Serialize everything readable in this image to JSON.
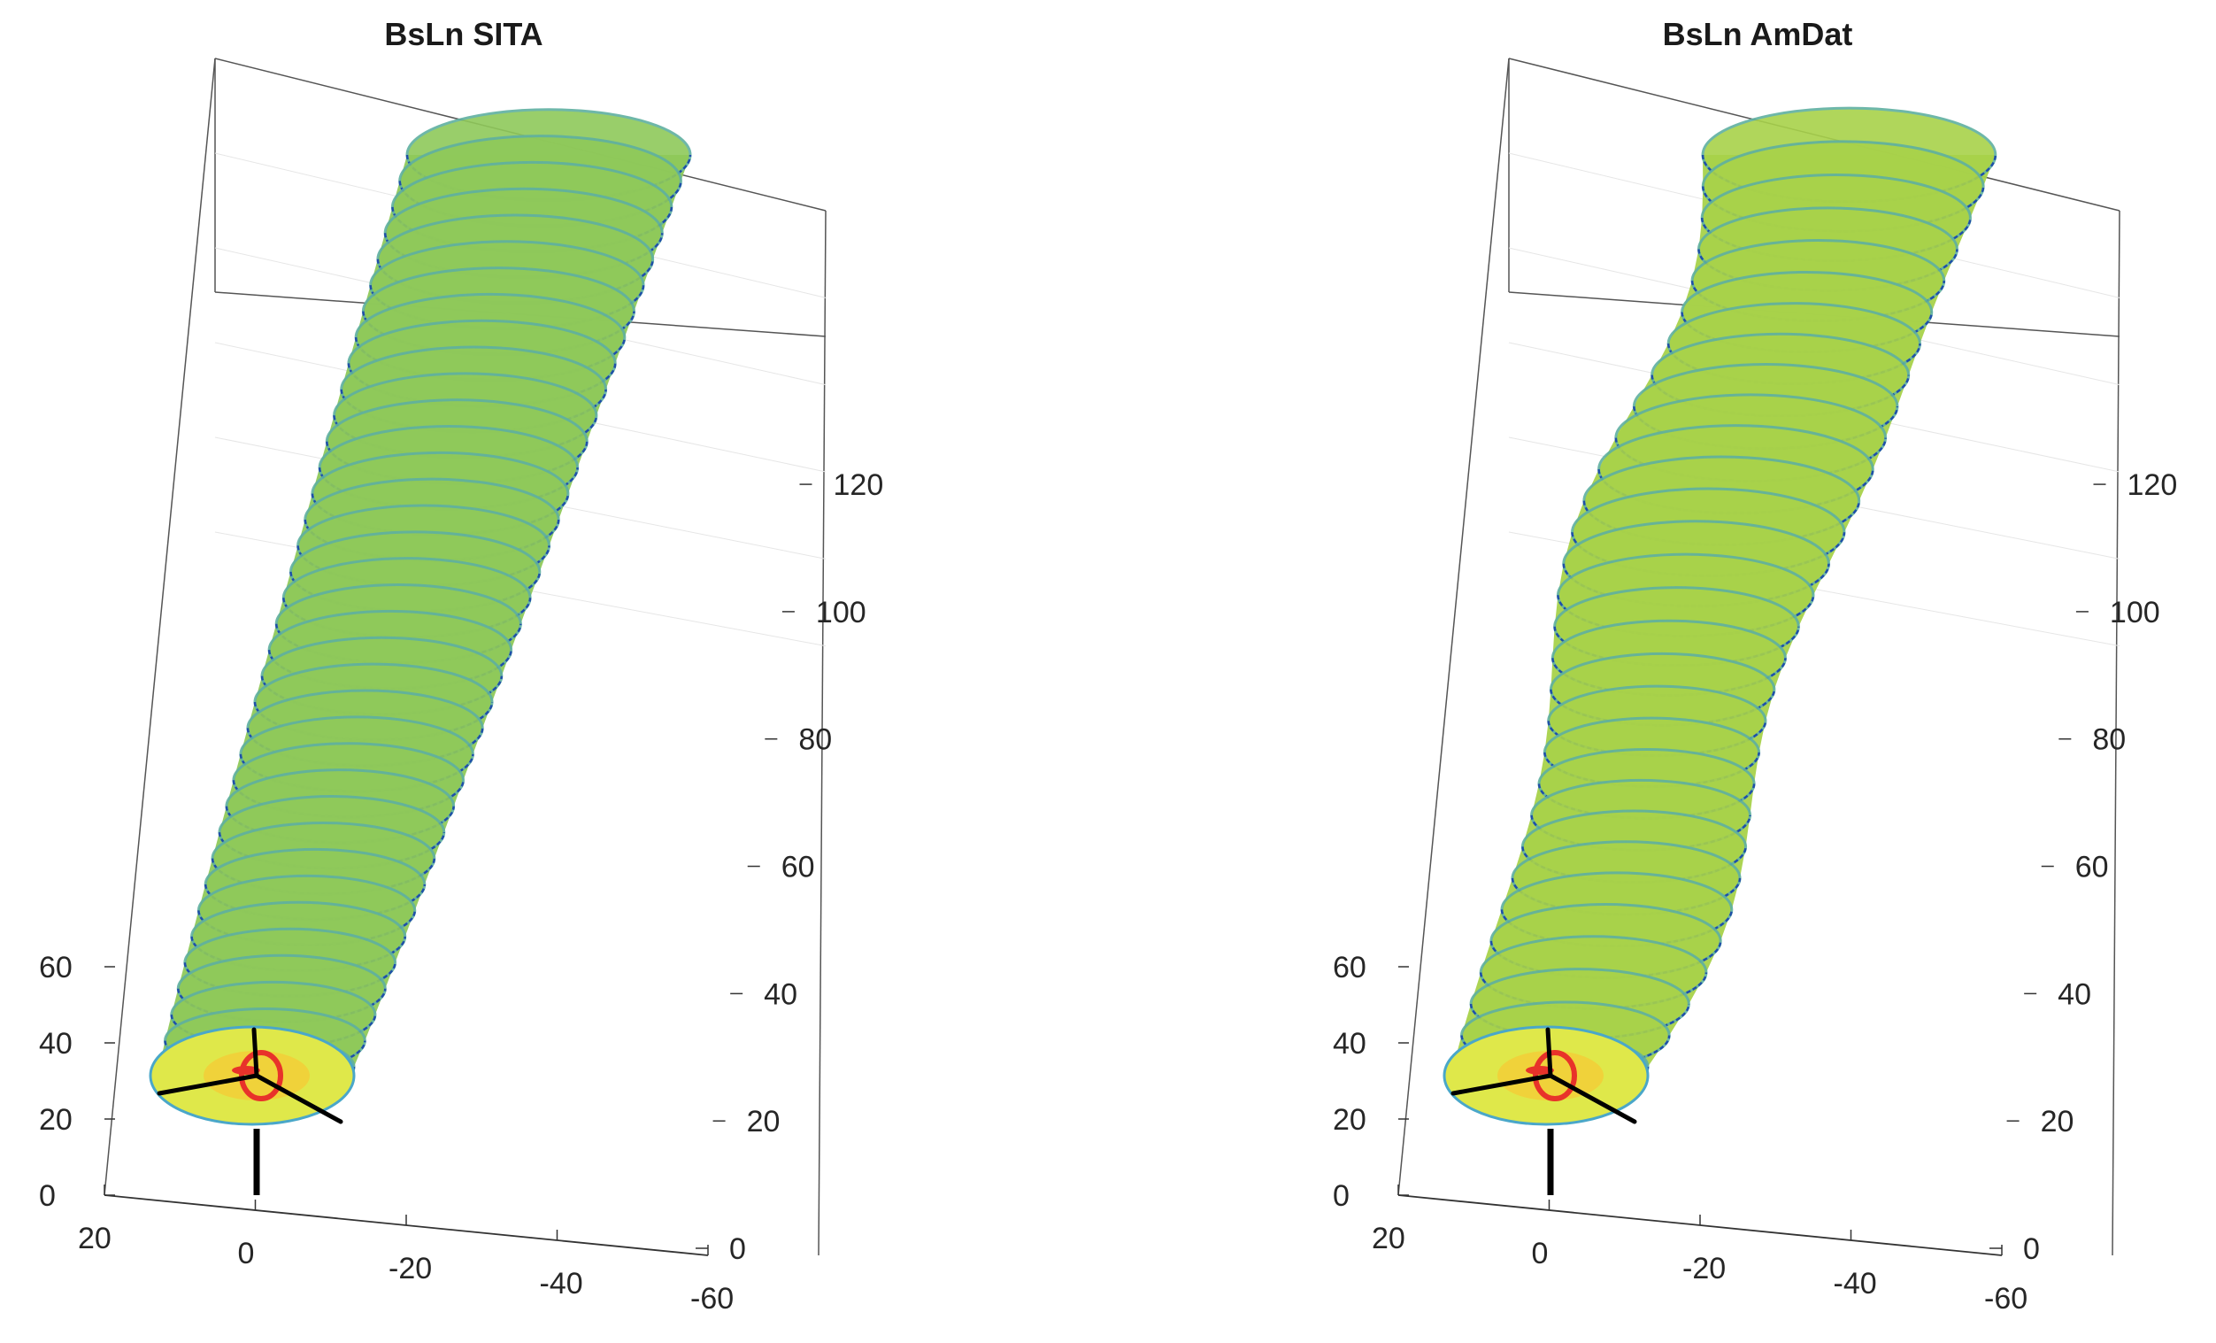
{
  "chart_data": [
    {
      "type": "surface3d",
      "title": "BsLn SITA",
      "description_kind": "wind turbine wake surface",
      "axes": {
        "x": {
          "ticks": [
            "20",
            "0",
            "-20",
            "-40",
            "-60"
          ],
          "range": [
            20,
            -60
          ]
        },
        "y": {
          "ticks": [
            "0",
            "20",
            "40",
            "60",
            "80",
            "100",
            "120"
          ],
          "range": [
            0,
            130
          ]
        },
        "z": {
          "ticks": [
            "0",
            "20",
            "40",
            "60"
          ],
          "range": [
            0,
            70
          ]
        }
      },
      "wake": {
        "rings": 36,
        "waviness": 0.0
      },
      "colors": {
        "surface": "#8fc95a",
        "ring": "#1f4fa8",
        "rotor_core": "#e8322a",
        "rotor_glow": "#f0d23a"
      }
    },
    {
      "type": "surface3d",
      "title": "BsLn AmDat",
      "description_kind": "wind turbine wake surface",
      "axes": {
        "x": {
          "ticks": [
            "20",
            "0",
            "-20",
            "-40",
            "-60"
          ],
          "range": [
            20,
            -60
          ]
        },
        "y": {
          "ticks": [
            "0",
            "20",
            "40",
            "60",
            "80",
            "100",
            "120"
          ],
          "range": [
            0,
            130
          ]
        },
        "z": {
          "ticks": [
            "0",
            "20",
            "40",
            "60"
          ],
          "range": [
            0,
            70
          ]
        }
      },
      "wake": {
        "rings": 30,
        "waviness": 1.0
      },
      "colors": {
        "surface": "#a8d24a",
        "ring": "#1f4fa8",
        "rotor_core": "#e8322a",
        "rotor_glow": "#f0d23a"
      }
    }
  ]
}
